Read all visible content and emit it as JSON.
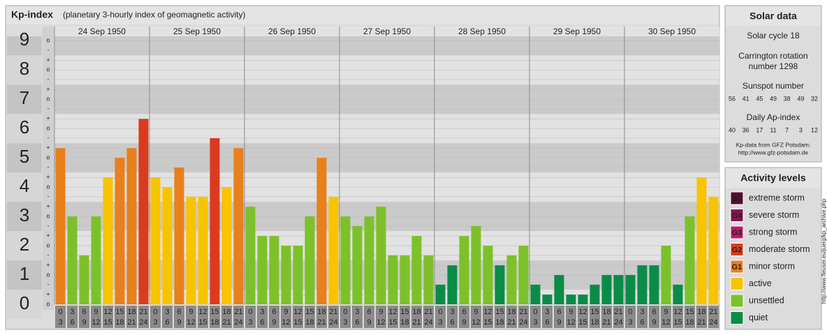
{
  "chart_data": {
    "type": "bar",
    "title": "Kp-index",
    "subtitle": "(planetary 3-hourly index of geomagnetic activity)",
    "days": [
      "24 Sep 1950",
      "25 Sep 1950",
      "26 Sep 1950",
      "27 Sep 1950",
      "28 Sep 1950",
      "29 Sep 1950",
      "30 Sep 1950"
    ],
    "slots": [
      [
        0,
        3
      ],
      [
        3,
        6
      ],
      [
        6,
        9
      ],
      [
        9,
        12
      ],
      [
        12,
        15
      ],
      [
        15,
        18
      ],
      [
        18,
        21
      ],
      [
        21,
        24
      ]
    ],
    "values": [
      [
        5.33,
        3,
        1.67,
        3,
        4.33,
        5,
        5.33,
        6.33
      ],
      [
        4.33,
        4,
        4.67,
        3.67,
        3.67,
        5.67,
        4,
        5.33
      ],
      [
        3.33,
        2.33,
        2.33,
        2,
        2,
        3,
        5,
        3.67
      ],
      [
        3,
        2.67,
        3,
        3.33,
        1.67,
        1.67,
        2.33,
        1.67
      ],
      [
        0.67,
        1.33,
        2.33,
        2.67,
        2,
        1.33,
        1.67,
        2
      ],
      [
        0.67,
        0.33,
        1,
        0.33,
        0.33,
        0.67,
        1,
        1
      ],
      [
        1,
        1.33,
        1.33,
        2,
        0.67,
        3,
        4.33,
        3.67
      ]
    ],
    "colors": [
      [
        "#e8801c",
        "#7cc12a",
        "#7cc12a",
        "#7cc12a",
        "#f8c400",
        "#e8801c",
        "#e8801c",
        "#dc3a1e"
      ],
      [
        "#f8c400",
        "#f8c400",
        "#e8801c",
        "#f8c400",
        "#f8c400",
        "#dc3a1e",
        "#f8c400",
        "#e8801c"
      ],
      [
        "#7cc12a",
        "#7cc12a",
        "#7cc12a",
        "#7cc12a",
        "#7cc12a",
        "#7cc12a",
        "#e8801c",
        "#f8c400"
      ],
      [
        "#7cc12a",
        "#7cc12a",
        "#7cc12a",
        "#7cc12a",
        "#7cc12a",
        "#7cc12a",
        "#7cc12a",
        "#7cc12a"
      ],
      [
        "#0a8c48",
        "#0a8c48",
        "#7cc12a",
        "#7cc12a",
        "#7cc12a",
        "#0a8c48",
        "#7cc12a",
        "#7cc12a"
      ],
      [
        "#0a8c48",
        "#0a8c48",
        "#0a8c48",
        "#0a8c48",
        "#0a8c48",
        "#0a8c48",
        "#0a8c48",
        "#0a8c48"
      ],
      [
        "#0a8c48",
        "#0a8c48",
        "#0a8c48",
        "#7cc12a",
        "#0a8c48",
        "#7cc12a",
        "#f8c400",
        "#f8c400"
      ]
    ],
    "ylim": [
      0,
      9.15
    ],
    "yticks": [
      0,
      1,
      2,
      3,
      4,
      5,
      6,
      7,
      8,
      9
    ],
    "yminorticks": [
      {
        "value": 0,
        "label": "o"
      },
      {
        "value": 0.33,
        "label": "+"
      },
      {
        "value": 0.67,
        "label": "-"
      },
      {
        "value": 1,
        "label": "o"
      },
      {
        "value": 1.33,
        "label": "+"
      },
      {
        "value": 1.67,
        "label": "-"
      },
      {
        "value": 2,
        "label": "o"
      },
      {
        "value": 2.33,
        "label": "+"
      },
      {
        "value": 2.67,
        "label": "-"
      },
      {
        "value": 3,
        "label": "o"
      },
      {
        "value": 3.33,
        "label": "+"
      },
      {
        "value": 3.67,
        "label": "-"
      },
      {
        "value": 4,
        "label": "o"
      },
      {
        "value": 4.33,
        "label": "+"
      },
      {
        "value": 4.67,
        "label": "-"
      },
      {
        "value": 5,
        "label": "o"
      },
      {
        "value": 5.33,
        "label": "+"
      },
      {
        "value": 5.67,
        "label": "-"
      },
      {
        "value": 6,
        "label": "o"
      },
      {
        "value": 6.33,
        "label": "+"
      },
      {
        "value": 6.67,
        "label": "-"
      },
      {
        "value": 7,
        "label": "o"
      },
      {
        "value": 7.33,
        "label": "+"
      },
      {
        "value": 7.67,
        "label": "-"
      },
      {
        "value": 8,
        "label": "o"
      },
      {
        "value": 8.33,
        "label": "+"
      },
      {
        "value": 8.67,
        "label": "-"
      },
      {
        "value": 9,
        "label": "o"
      }
    ],
    "grid": true
  },
  "solar_data": {
    "title": "Solar data",
    "solar_cycle": "Solar cycle 18",
    "carrington": [
      "Carrington rotation",
      "number 1298"
    ],
    "sunspot_title": "Sunspot number",
    "sunspot_numbers": [
      56,
      41,
      45,
      49,
      38,
      49,
      32
    ],
    "ap_title": "Daily Ap-index",
    "ap_values": [
      40,
      36,
      17,
      11,
      7,
      3,
      12
    ],
    "source": [
      "Kp-data from GFZ Potsdam:",
      "http://www.gfz-potsdam.de"
    ]
  },
  "activity_levels": {
    "title": "Activity levels",
    "items": [
      {
        "badge": "G5",
        "label": "extreme storm",
        "color": "#5a0a2e"
      },
      {
        "badge": "G4",
        "label": "severe storm",
        "color": "#8a1250"
      },
      {
        "badge": "G3",
        "label": "strong storm",
        "color": "#c0186a"
      },
      {
        "badge": "G2",
        "label": "moderate storm",
        "color": "#dc3a1e"
      },
      {
        "badge": "G1",
        "label": "minor storm",
        "color": "#e8801c"
      },
      {
        "label": "active",
        "color": "#f8c400"
      },
      {
        "label": "unsettled",
        "color": "#7cc12a"
      },
      {
        "label": "quiet",
        "color": "#0a8c48"
      }
    ]
  },
  "watermark": "http://www.fleuser.eu/juerg/kp_archive.php"
}
